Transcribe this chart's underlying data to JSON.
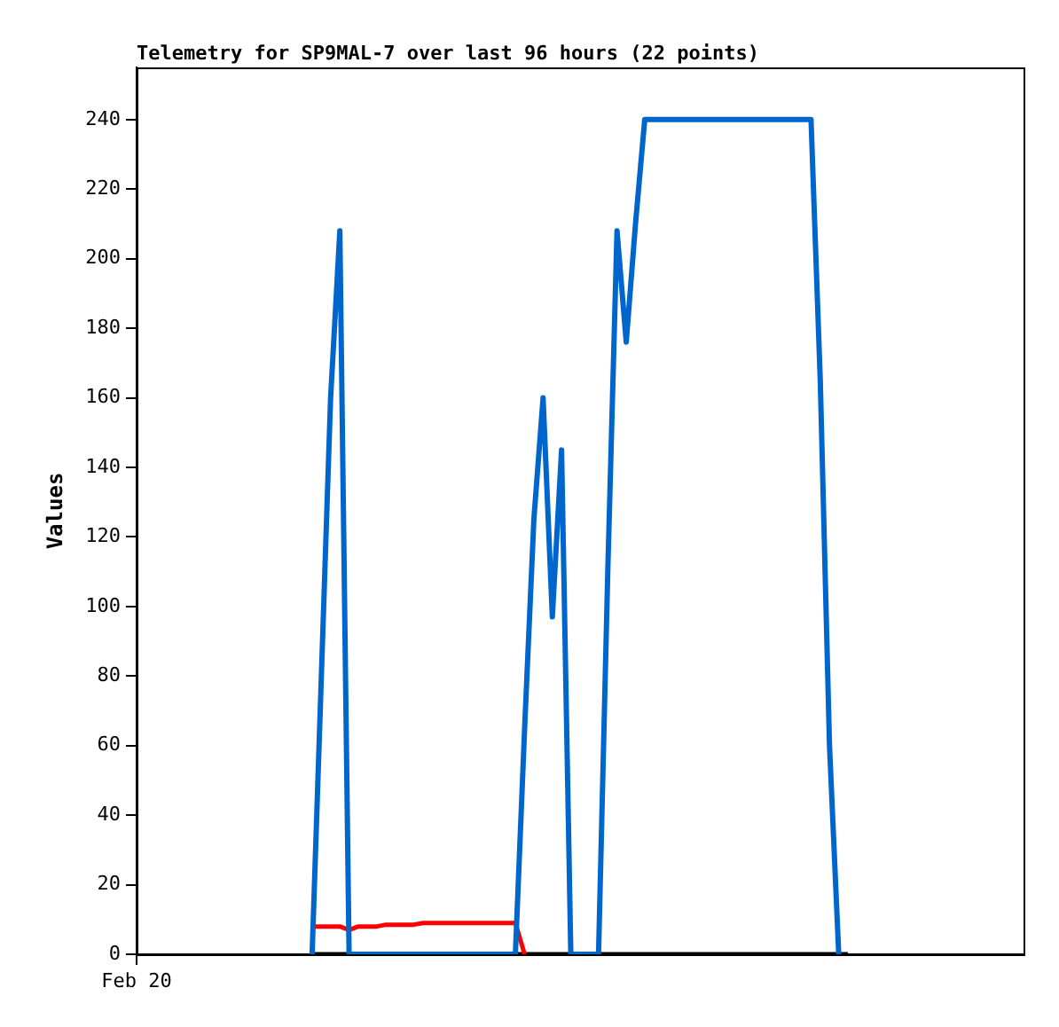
{
  "chart_data": {
    "type": "line",
    "title": "Telemetry for SP9MAL-7 over last 96 hours (22 points)",
    "ylabel": "Values",
    "categories": [
      "Feb 20",
      null,
      null,
      null,
      null,
      null,
      null,
      null,
      null,
      null,
      null,
      null,
      null,
      null,
      null,
      null,
      null,
      null,
      null,
      null,
      null,
      null,
      null,
      null,
      null,
      null,
      null,
      null,
      null,
      null,
      null,
      null,
      null,
      null,
      null,
      null,
      null,
      null,
      null,
      null,
      null,
      null,
      null,
      null,
      null,
      null,
      null,
      null,
      null,
      null,
      null,
      null,
      null,
      null,
      null,
      null,
      null,
      null,
      null,
      null,
      null,
      null,
      null,
      null,
      null,
      null,
      null,
      null,
      null,
      null,
      null,
      null,
      null,
      null,
      null,
      null,
      null,
      null,
      null,
      null,
      null,
      null,
      null,
      null,
      null,
      null,
      null,
      null,
      null,
      null,
      null,
      null,
      null,
      null,
      null,
      null,
      null
    ],
    "ylim": [
      0,
      255
    ],
    "yticks": [
      0,
      20,
      40,
      60,
      80,
      100,
      120,
      140,
      160,
      180,
      200,
      220,
      240
    ],
    "grid": false,
    "legend": false,
    "marker": "none",
    "line_style": "solid",
    "series": [
      {
        "color": "#0066cc",
        "values": [
          null,
          null,
          null,
          null,
          null,
          null,
          null,
          null,
          null,
          null,
          null,
          null,
          null,
          null,
          null,
          null,
          null,
          null,
          null,
          0,
          80,
          160,
          208,
          0,
          0,
          0,
          0,
          0,
          0,
          0,
          0,
          0,
          0,
          0,
          0,
          0,
          0,
          0,
          0,
          0,
          0,
          0,
          65,
          125,
          160,
          97,
          145,
          0,
          0,
          0,
          0,
          110,
          208,
          176,
          210,
          240,
          240,
          240,
          240,
          240,
          240,
          240,
          240,
          240,
          240,
          240,
          240,
          240,
          240,
          240,
          240,
          240,
          240,
          240,
          165,
          60,
          0,
          null,
          null,
          null,
          null,
          null,
          null,
          null,
          null,
          null,
          null,
          null,
          null,
          null,
          null,
          null,
          null,
          null,
          null,
          null,
          null
        ]
      },
      {
        "color": "#ff0000",
        "values": [
          null,
          null,
          null,
          null,
          null,
          null,
          null,
          null,
          null,
          null,
          null,
          null,
          null,
          null,
          null,
          null,
          null,
          null,
          null,
          8,
          8,
          8,
          8,
          7,
          8,
          8,
          8,
          8.5,
          8.5,
          8.5,
          8.5,
          9,
          9,
          9,
          9,
          9,
          9,
          9,
          9,
          9,
          9,
          9,
          0,
          null,
          null,
          null,
          null,
          null,
          null,
          null,
          null,
          null,
          null,
          null,
          null,
          null,
          null,
          null,
          null,
          null,
          null,
          null,
          null,
          null,
          null,
          null,
          null,
          null,
          null,
          null,
          null,
          null,
          null,
          null,
          null,
          null,
          null,
          null,
          null,
          null,
          null,
          null,
          null,
          null,
          null,
          null,
          null,
          null,
          null,
          null,
          null,
          null,
          null,
          null,
          null,
          null,
          null
        ]
      },
      {
        "color": "#000000",
        "values": [
          null,
          null,
          null,
          null,
          null,
          null,
          null,
          null,
          null,
          null,
          null,
          null,
          null,
          null,
          null,
          null,
          null,
          null,
          null,
          0,
          0,
          0,
          0,
          0,
          0,
          0,
          0,
          0,
          0,
          0,
          0,
          0,
          0,
          0,
          0,
          0,
          0,
          0,
          0,
          0,
          0,
          0,
          0,
          0,
          0,
          0,
          0,
          0,
          0,
          0,
          0,
          0,
          0,
          0,
          0,
          0,
          0,
          0,
          0,
          0,
          0,
          0,
          0,
          0,
          0,
          0,
          0,
          0,
          0,
          0,
          0,
          0,
          0,
          0,
          0,
          0,
          0,
          0,
          null,
          null,
          null,
          null,
          null,
          null,
          null,
          null,
          null,
          null,
          null,
          null,
          null,
          null,
          null,
          null,
          null,
          null,
          null
        ]
      }
    ]
  }
}
